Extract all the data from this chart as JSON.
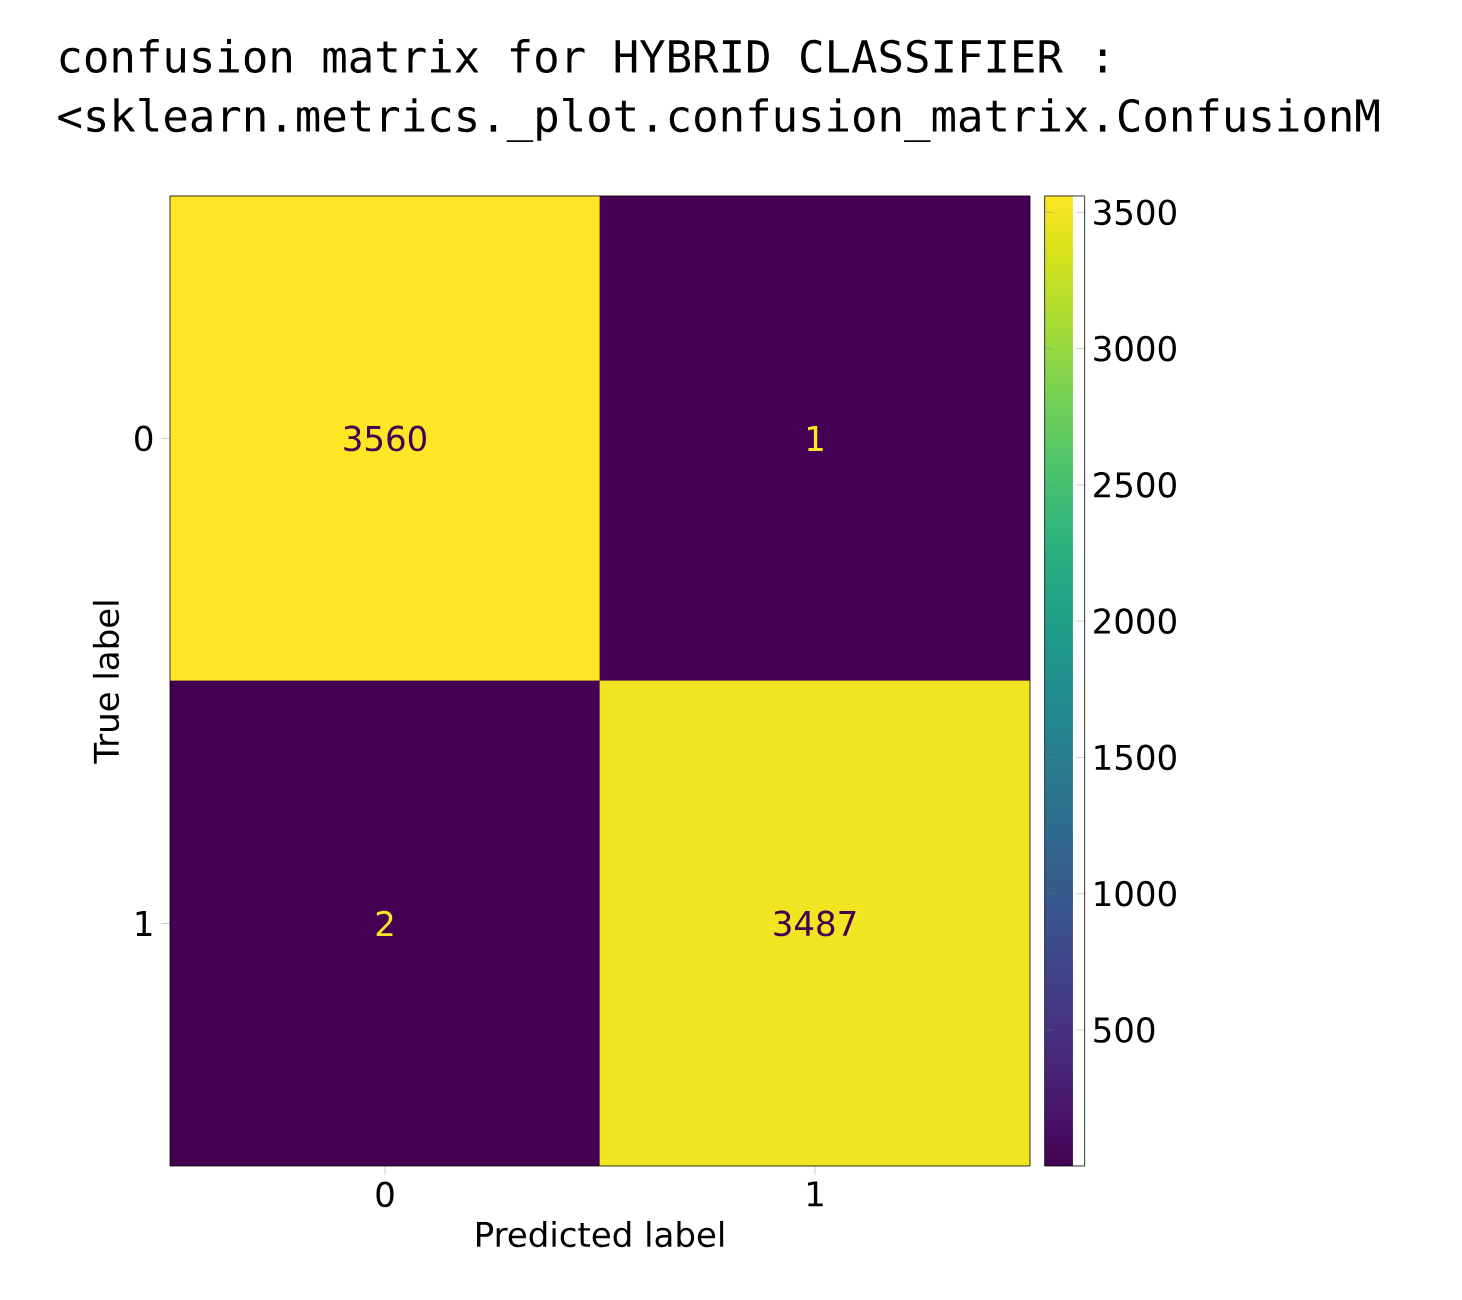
{
  "chart_data": {
    "type": "heatmap",
    "title": "confusion matrix for HYBRID CLASSIFIER :",
    "annotations": [
      "<sklearn.metrics._plot.confusion_matrix.ConfusionM"
    ],
    "xlabel": "Predicted label",
    "ylabel": "True label",
    "categories": [
      "0",
      "1"
    ],
    "y_categories": [
      "0",
      "1"
    ],
    "cells": [
      [
        3560,
        1
      ],
      [
        2,
        3487
      ]
    ],
    "data_labels": true,
    "clim": [
      1,
      3560
    ],
    "cticks": [
      500,
      1000,
      1500,
      2000,
      2500,
      3000,
      3500
    ]
  }
}
